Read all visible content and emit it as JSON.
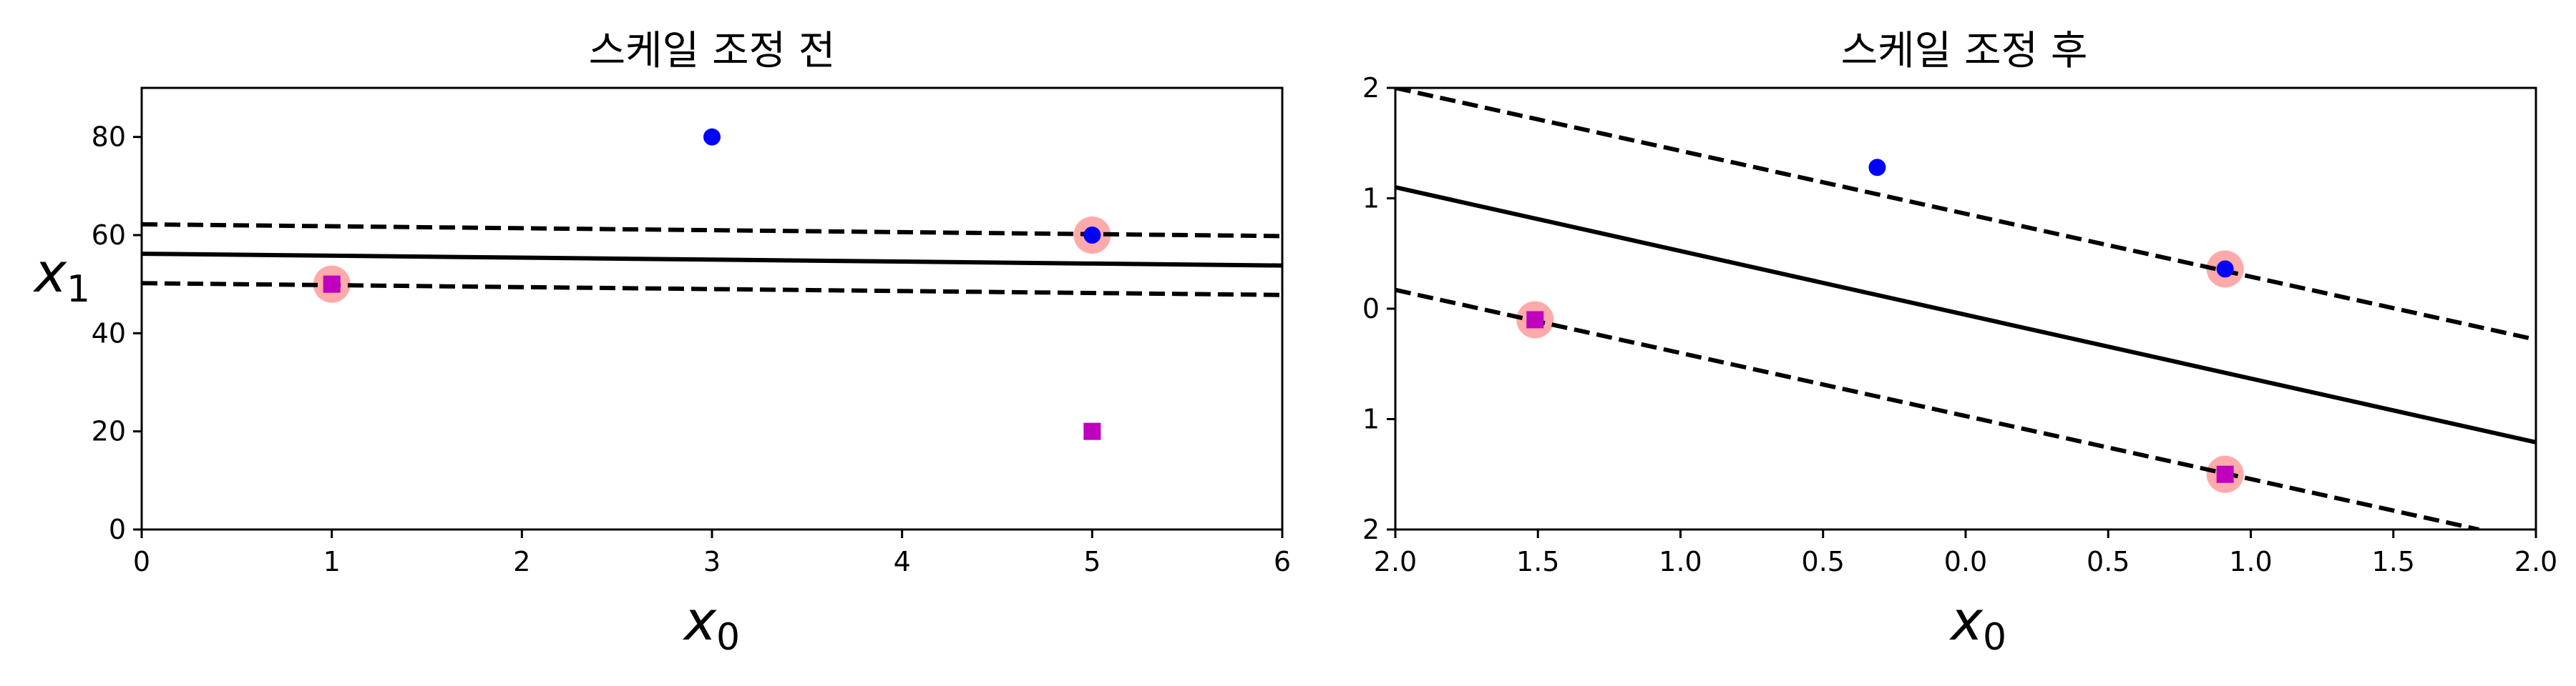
{
  "colors": {
    "support_vector_highlight": "#FFAAAA",
    "positive_class": "#0000FF",
    "negative_class": "#BF00BF",
    "decision_line": "#000000"
  },
  "chart_data": [
    {
      "type": "scatter",
      "title": "스케일 조정 전",
      "xlabel": "x",
      "xlabel_sub": "0",
      "ylabel": "x",
      "ylabel_sub": "1",
      "xlim": [
        0,
        6
      ],
      "ylim": [
        0,
        90
      ],
      "xticks": [
        0,
        1,
        2,
        3,
        4,
        5,
        6
      ],
      "xtick_labels": [
        "0",
        "1",
        "2",
        "3",
        "4",
        "5",
        "6"
      ],
      "yticks": [
        0,
        20,
        40,
        60,
        80
      ],
      "ytick_labels": [
        "0",
        "20",
        "40",
        "60",
        "80"
      ],
      "grid": false,
      "series": [
        {
          "class": "positive",
          "marker": "circle",
          "color": "#0000FF",
          "points": [
            [
              3,
              80
            ],
            [
              5,
              60
            ]
          ]
        },
        {
          "class": "negative",
          "marker": "square",
          "color": "#BF00BF",
          "points": [
            [
              1,
              50
            ],
            [
              5,
              20
            ]
          ]
        }
      ],
      "support_vectors": [
        [
          1,
          50
        ],
        [
          5,
          60
        ]
      ],
      "lines": [
        {
          "style": "solid",
          "from": [
            0,
            56.2
          ],
          "to": [
            6,
            53.8
          ]
        },
        {
          "style": "dashed",
          "from": [
            0,
            62.2
          ],
          "to": [
            6,
            59.8
          ]
        },
        {
          "style": "dashed",
          "from": [
            0,
            50.2
          ],
          "to": [
            6,
            47.8
          ]
        }
      ]
    },
    {
      "type": "scatter",
      "title": "스케일 조정 후",
      "xlabel": "x",
      "xlabel_sub": "0",
      "ylabel": "",
      "xlim": [
        -2,
        2
      ],
      "ylim": [
        -2,
        2
      ],
      "xticks": [
        -2,
        -1.5,
        -1,
        -0.5,
        0,
        0.5,
        1,
        1.5,
        2
      ],
      "xtick_labels": [
        "2.0",
        "1.5",
        "1.0",
        "0.5",
        "0.0",
        "0.5",
        "1.0",
        "1.5",
        "2.0"
      ],
      "yticks": [
        -2,
        -1,
        0,
        1,
        2
      ],
      "ytick_labels": [
        "2",
        "1",
        "0",
        "1",
        "2"
      ],
      "grid": false,
      "series": [
        {
          "class": "positive",
          "marker": "circle",
          "color": "#0000FF",
          "points": [
            [
              -0.31,
              1.28
            ],
            [
              0.91,
              0.36
            ]
          ]
        },
        {
          "class": "negative",
          "marker": "square",
          "color": "#BF00BF",
          "points": [
            [
              -1.51,
              -0.1
            ],
            [
              0.91,
              -1.5
            ]
          ]
        }
      ],
      "support_vectors": [
        [
          -1.51,
          -0.1
        ],
        [
          0.91,
          0.36
        ],
        [
          0.91,
          -1.5
        ]
      ],
      "lines": [
        {
          "style": "solid",
          "from": [
            -2,
            1.1
          ],
          "to": [
            2,
            -1.21
          ]
        },
        {
          "style": "dashed",
          "from": [
            -2,
            2.0
          ],
          "to": [
            2,
            -0.28
          ]
        },
        {
          "style": "dashed",
          "from": [
            -2,
            0.17
          ],
          "to": [
            1.8,
            -2.0
          ]
        }
      ]
    }
  ]
}
